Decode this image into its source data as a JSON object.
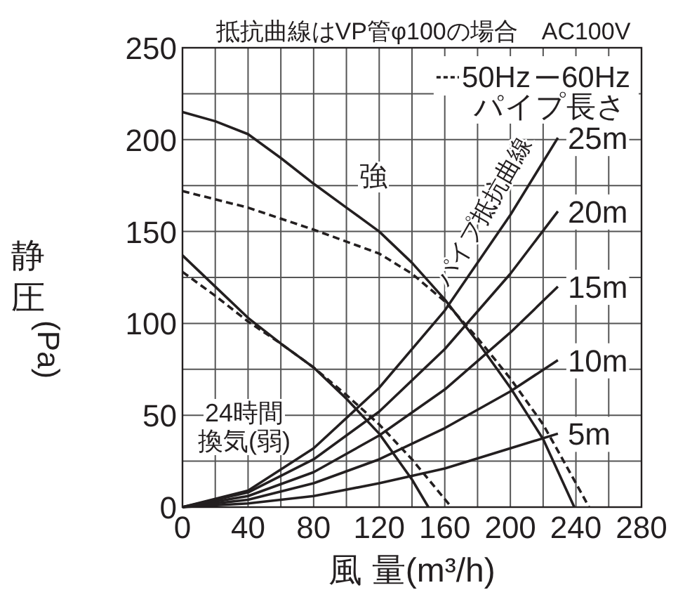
{
  "chart_data": {
    "type": "line",
    "title": "抵抗曲線はVP管φ100の場合　AC100V",
    "xlabel": "風 量(m³/h)",
    "ylabel": "静圧(Pa)",
    "xlim": [
      0,
      280
    ],
    "ylim": [
      0,
      250
    ],
    "xticks": [
      0,
      {
        "value": 20,
        "label": null
      },
      40,
      {
        "value": 60,
        "label": null
      },
      80,
      {
        "value": 100,
        "label": null
      },
      120,
      {
        "value": 140,
        "label": null
      },
      160,
      {
        "value": 180,
        "label": null
      },
      200,
      {
        "value": 220,
        "label": null
      },
      240,
      {
        "value": 260,
        "label": null
      },
      280
    ],
    "yticks": [
      0,
      {
        "value": 25,
        "label": null
      },
      50,
      {
        "value": 75,
        "label": null
      },
      100,
      {
        "value": 125,
        "label": null
      },
      150,
      {
        "value": 175,
        "label": null
      },
      200,
      {
        "value": 225,
        "label": null
      },
      250
    ],
    "grid": true,
    "legend": "top right",
    "marker": "none",
    "series": [
      {
        "name": "60Hz",
        "color": "#231f20",
        "line_style": "solid",
        "x": [
          0,
          20,
          40,
          60,
          80,
          100,
          120,
          140,
          160,
          180,
          200,
          220,
          239
        ],
        "values": [
          215,
          210,
          203,
          190,
          176,
          163,
          150,
          133,
          113,
          90,
          65,
          37,
          0
        ]
      },
      {
        "name": "50Hz",
        "color": "#231f20",
        "line_style": "dashed",
        "x": [
          0,
          40,
          80,
          120,
          140,
          160,
          180,
          200,
          220,
          240,
          248
        ],
        "values": [
          172,
          163,
          151,
          138,
          127,
          112,
          92,
          70,
          45,
          13,
          0
        ]
      },
      {
        "color": "#231f20",
        "line_style": "solid",
        "x": [
          0,
          20,
          40,
          60,
          80,
          100,
          120,
          140,
          150
        ],
        "values": [
          137,
          120,
          103,
          89,
          76,
          59,
          40,
          15,
          0
        ]
      },
      {
        "color": "#231f20",
        "line_style": "dashed",
        "x": [
          0,
          20,
          40,
          60,
          80,
          100,
          120,
          140,
          164
        ],
        "values": [
          128,
          115,
          101,
          89,
          76,
          61,
          45,
          26,
          0
        ]
      },
      {
        "name": "25m",
        "color": "#231f20",
        "line_style": "solid",
        "x": [
          0,
          40,
          80,
          120,
          160,
          200,
          229
        ],
        "values": [
          0,
          9,
          32,
          65,
          107,
          159,
          201
        ]
      },
      {
        "name": "20m",
        "color": "#231f20",
        "line_style": "solid",
        "x": [
          0,
          40,
          80,
          120,
          160,
          200,
          229
        ],
        "values": [
          0,
          8,
          26,
          52,
          86,
          127,
          161
        ]
      },
      {
        "name": "15m",
        "color": "#231f20",
        "line_style": "solid",
        "x": [
          0,
          40,
          80,
          120,
          160,
          200,
          229
        ],
        "values": [
          0,
          6,
          19,
          39,
          64,
          95,
          120
        ]
      },
      {
        "name": "10m",
        "color": "#231f20",
        "line_style": "solid",
        "x": [
          0,
          40,
          80,
          120,
          160,
          200,
          229
        ],
        "values": [
          0,
          4,
          13,
          26,
          43,
          63,
          80
        ]
      },
      {
        "name": "5m",
        "color": "#231f20",
        "line_style": "solid",
        "x": [
          0,
          40,
          80,
          120,
          160,
          200,
          229
        ],
        "values": [
          0,
          2,
          6,
          13,
          21,
          32,
          40
        ]
      }
    ],
    "annotations": [
      "強",
      "24時間",
      "換気(弱)",
      "パイプ抵抗曲線",
      "パイプ長さ"
    ]
  }
}
